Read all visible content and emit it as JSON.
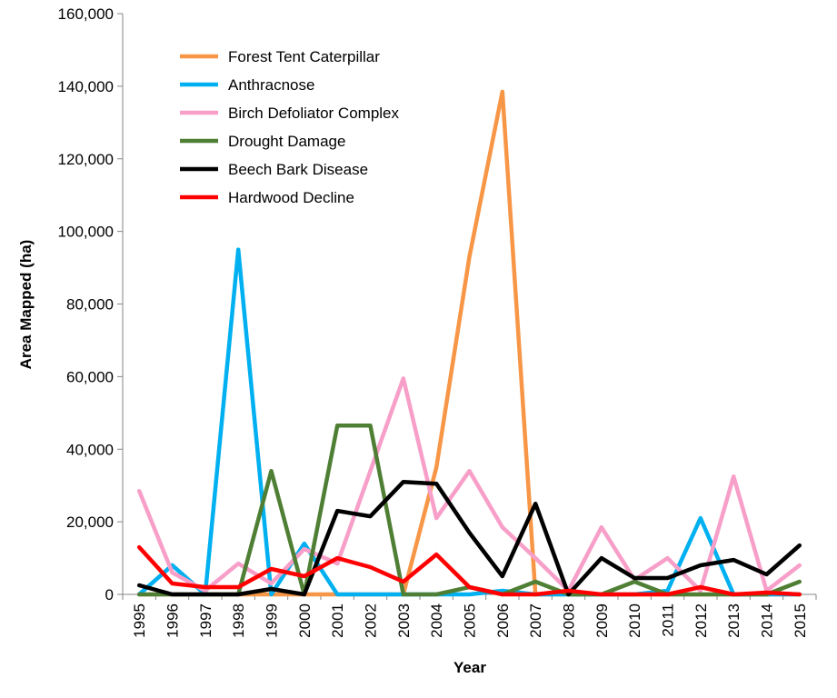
{
  "chart_data": {
    "type": "line",
    "title": "",
    "xlabel": "Year",
    "ylabel": "Area Mapped (ha)",
    "ylim": [
      0,
      160000
    ],
    "yticks": [
      "0",
      "20,000",
      "40,000",
      "60,000",
      "80,000",
      "100,000",
      "120,000",
      "140,000",
      "160,000"
    ],
    "categories": [
      "1995",
      "1996",
      "1997",
      "1998",
      "1999",
      "2000",
      "2001",
      "2002",
      "2003",
      "2004",
      "2005",
      "2006",
      "2007",
      "2008",
      "2009",
      "2010",
      "2011",
      "2012",
      "2013",
      "2014",
      "2015"
    ],
    "grid": false,
    "legend_position": "top-left",
    "series": [
      {
        "name": "Forest Tent Caterpillar",
        "color": "#F79646",
        "values": [
          0,
          0,
          0,
          0,
          0,
          0,
          0,
          0,
          0,
          35000,
          93000,
          138500,
          0,
          0,
          0,
          0,
          0,
          0,
          0,
          0,
          0
        ]
      },
      {
        "name": "Anthracnose",
        "color": "#00B0F0",
        "values": [
          0,
          8000,
          0,
          95000,
          0,
          14000,
          0,
          0,
          0,
          0,
          0,
          1000,
          0,
          0,
          0,
          0,
          1000,
          21000,
          0,
          0,
          0
        ]
      },
      {
        "name": "Birch Defoliator Complex",
        "color": "#F79FC8",
        "values": [
          28500,
          6000,
          1000,
          8500,
          3000,
          12500,
          8500,
          34000,
          59500,
          21000,
          34000,
          18500,
          10000,
          1000,
          18500,
          4000,
          10000,
          1000,
          32500,
          1000,
          8000
        ]
      },
      {
        "name": "Drought Damage",
        "color": "#4F7F34",
        "values": [
          0,
          0,
          0,
          0,
          34000,
          0,
          46500,
          46500,
          0,
          0,
          2000,
          0,
          3500,
          0,
          0,
          3500,
          0,
          0,
          0,
          0,
          3500
        ]
      },
      {
        "name": "Beech Bark Disease",
        "color": "#000000",
        "values": [
          2500,
          0,
          0,
          0,
          1500,
          0,
          23000,
          21500,
          31000,
          30500,
          17000,
          5000,
          25000,
          0,
          10000,
          4500,
          4500,
          8000,
          9500,
          5500,
          13500
        ]
      },
      {
        "name": "Hardwood Decline",
        "color": "#FF0000",
        "values": [
          13000,
          3000,
          2000,
          2000,
          7000,
          5000,
          10000,
          7500,
          3500,
          11000,
          2000,
          0,
          0,
          1000,
          0,
          0,
          0,
          2000,
          0,
          500,
          0
        ]
      }
    ]
  }
}
